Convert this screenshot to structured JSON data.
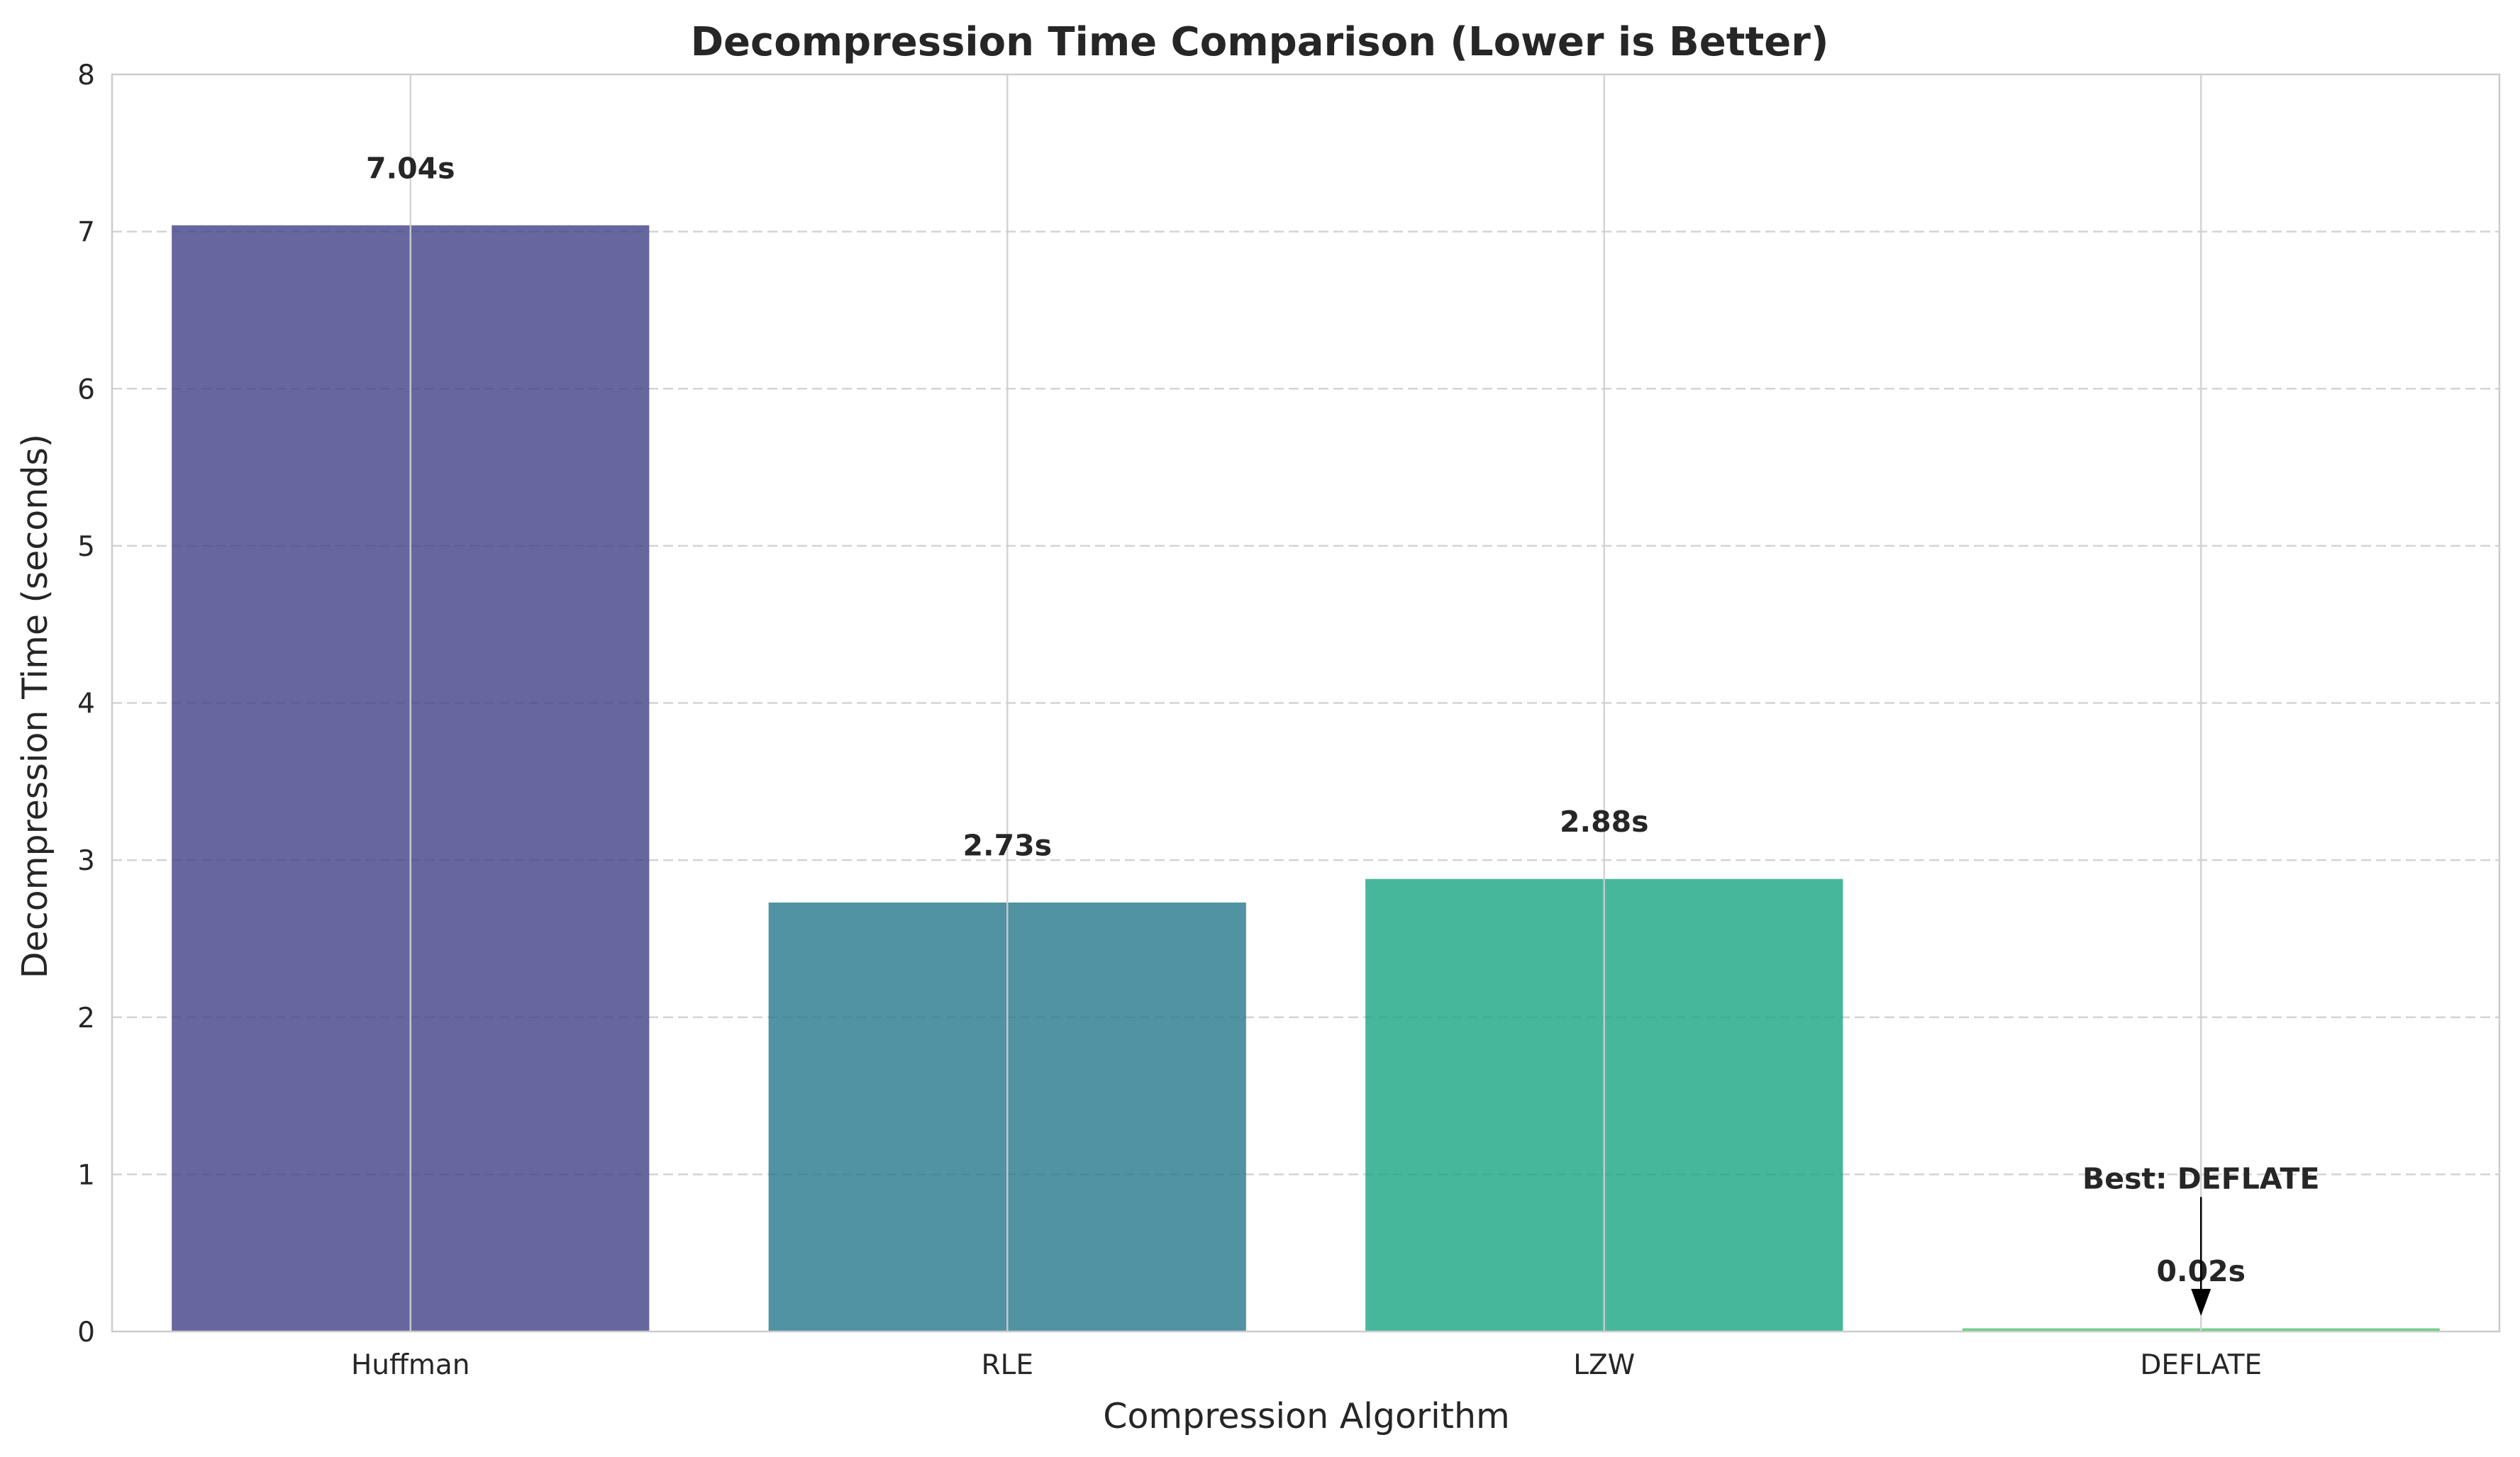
{
  "chart_data": {
    "type": "bar",
    "title": "Decompression Time Comparison (Lower is Better)",
    "xlabel": "Compression Algorithm",
    "ylabel": "Decompression Time (seconds)",
    "categories": [
      "Huffman",
      "RLE",
      "LZW",
      "DEFLATE"
    ],
    "values": [
      7.04,
      2.73,
      2.88,
      0.02
    ],
    "value_labels": [
      "7.04s",
      "2.73s",
      "2.88s",
      "0.02s"
    ],
    "colors": [
      "#46468a",
      "#2b7a8f",
      "#1fa785",
      "#4dc36b"
    ],
    "ylim": [
      0,
      8
    ],
    "yticks": [
      "0",
      "1",
      "2",
      "3",
      "4",
      "5",
      "6",
      "7",
      "8"
    ],
    "grid": true,
    "annotation": {
      "text": "Best: DEFLATE",
      "target_category": "DEFLATE",
      "target_value": 0.1,
      "text_value": 0.82
    }
  }
}
